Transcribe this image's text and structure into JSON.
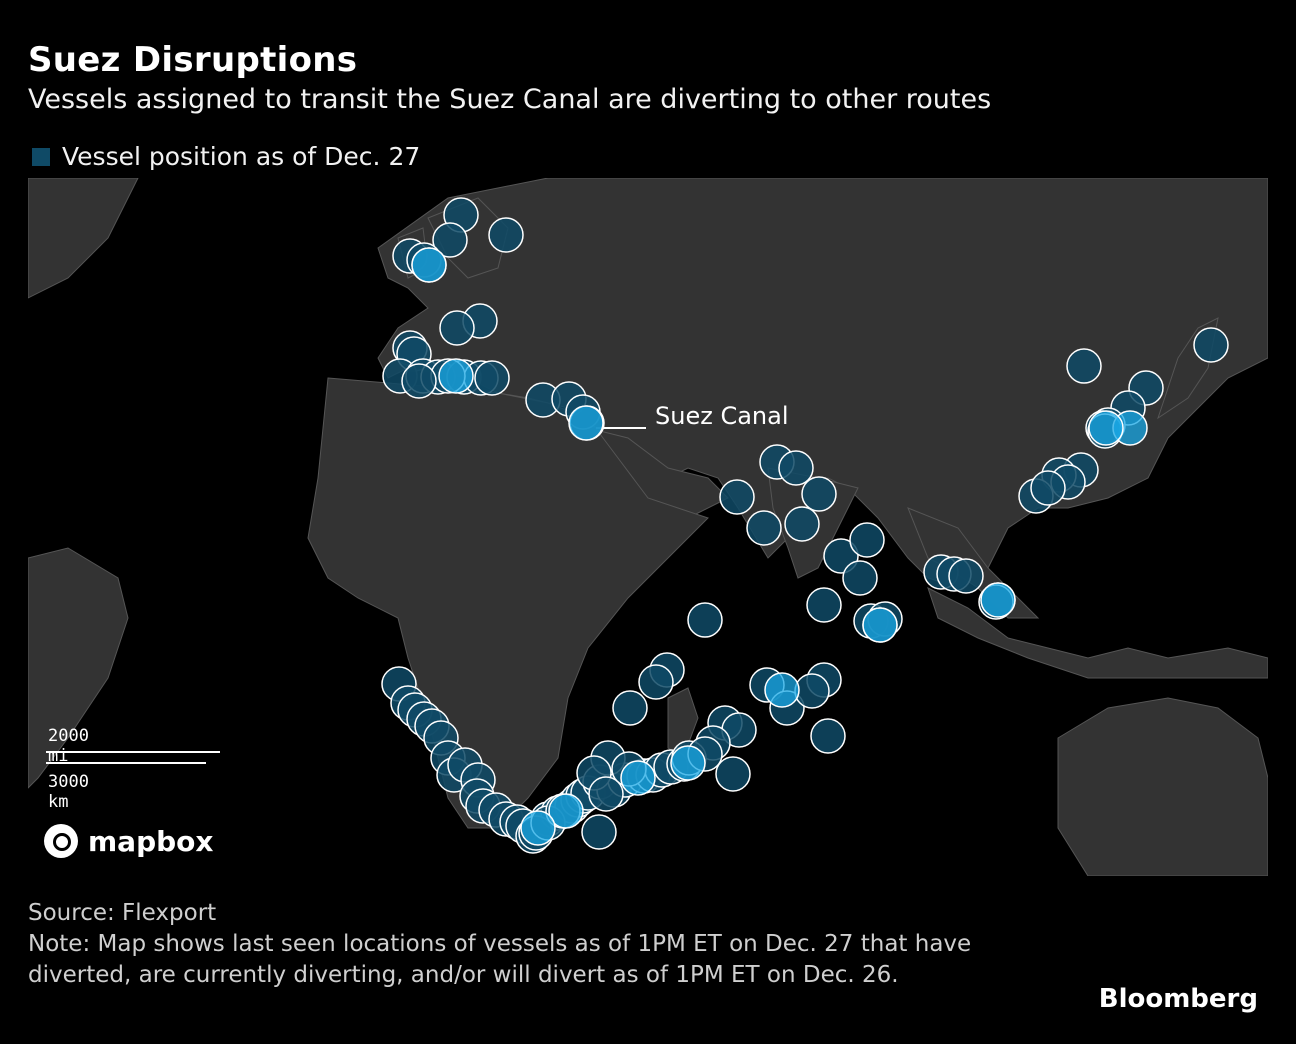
{
  "header": {
    "title": "Suez Disruptions",
    "subtitle": "Vessels assigned to transit the Suez Canal are diverting to other routes"
  },
  "legend": {
    "label": "Vessel position as of Dec. 27",
    "color": "#0f4a66"
  },
  "map": {
    "annotation": "Suez Canal",
    "scale_mi": "2000 mi",
    "scale_km": "3000 km",
    "attribution": "mapbox",
    "colors": {
      "land": "#333333",
      "border": "#555555",
      "water": "#000000",
      "vessel_fill": "#0f4a66",
      "vessel_highlight": "#1aa8e6",
      "vessel_stroke": "#ffffff"
    }
  },
  "footer": {
    "source": "Source: Flexport",
    "note": "Note: Map shows last seen locations of vessels as of 1PM ET on Dec. 27 that have diverted, are currently diverting, and/or will divert as of 1PM ET on Dec. 26.",
    "brand": "Bloomberg"
  }
}
